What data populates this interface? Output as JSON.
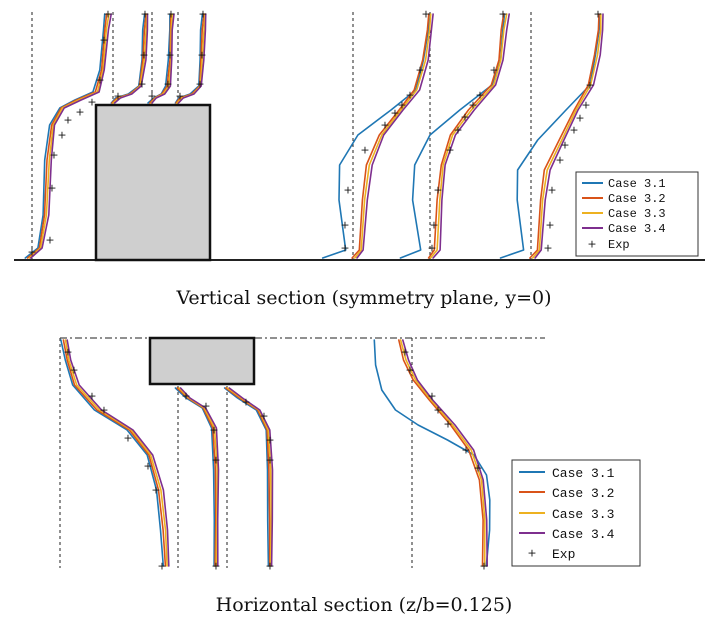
{
  "chart_data": [
    {
      "type": "line",
      "title": "",
      "caption": "Vertical section (symmetry plane, y=0)",
      "series": [
        {
          "name": "Case 3.1",
          "color": "#1f77b4"
        },
        {
          "name": "Case 3.2",
          "color": "#d95319"
        },
        {
          "name": "Case 3.3",
          "color": "#edb120"
        },
        {
          "name": "Case 3.4",
          "color": "#7e2f8e"
        }
      ],
      "experiment": {
        "name": "Exp",
        "marker": "+"
      },
      "legend_position": "bottom-right",
      "grid": false
    },
    {
      "type": "line",
      "title": "",
      "caption": "Horizontal section (z/b=0.125)",
      "series": [
        {
          "name": "Case 3.1",
          "color": "#1f77b4"
        },
        {
          "name": "Case 3.2",
          "color": "#d95319"
        },
        {
          "name": "Case 3.3",
          "color": "#edb120"
        },
        {
          "name": "Case 3.4",
          "color": "#7e2f8e"
        }
      ],
      "experiment": {
        "name": "Exp",
        "marker": "+"
      },
      "legend_position": "right",
      "grid": false
    }
  ]
}
